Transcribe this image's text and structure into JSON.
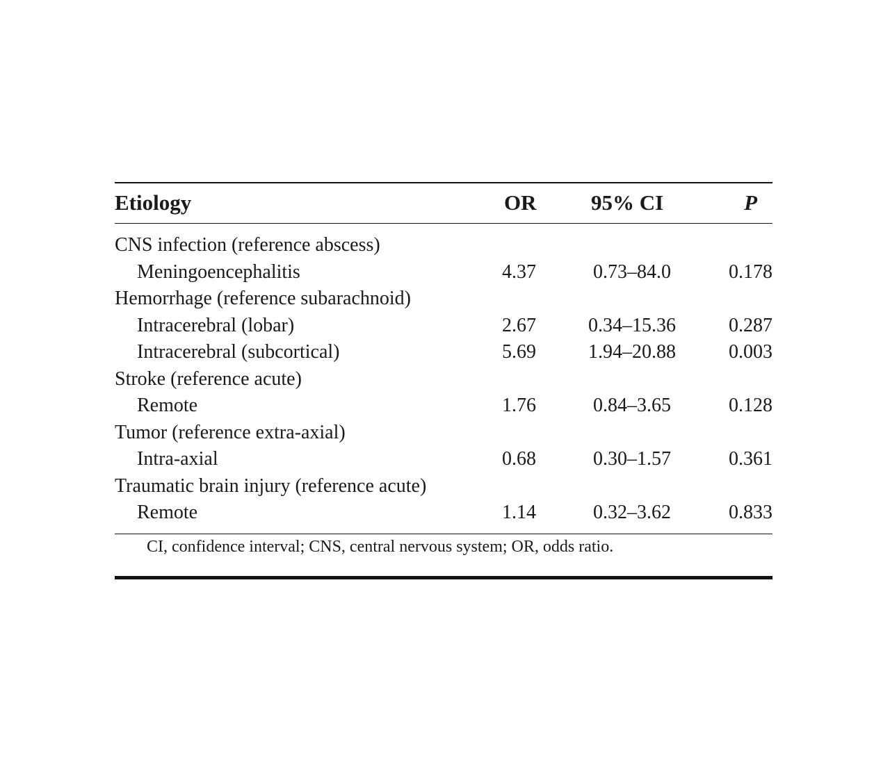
{
  "table": {
    "headers": {
      "etiology": "Etiology",
      "or": "OR",
      "ci": "95% CI",
      "p": "P"
    },
    "rows": [
      {
        "label": "CNS infection (reference abscess)",
        "or": "",
        "ci": "",
        "p": "",
        "sub": false
      },
      {
        "label": "Meningoencephalitis",
        "or": "4.37",
        "ci": "0.73–84.0",
        "p": "0.178",
        "sub": true
      },
      {
        "label": "Hemorrhage (reference subarachnoid)",
        "or": "",
        "ci": "",
        "p": "",
        "sub": false
      },
      {
        "label": "Intracerebral (lobar)",
        "or": "2.67",
        "ci": "0.34–15.36",
        "p": "0.287",
        "sub": true
      },
      {
        "label": "Intracerebral (subcortical)",
        "or": "5.69",
        "ci": "1.94–20.88",
        "p": "0.003",
        "sub": true
      },
      {
        "label": "Stroke (reference acute)",
        "or": "",
        "ci": "",
        "p": "",
        "sub": false
      },
      {
        "label": "Remote",
        "or": "1.76",
        "ci": "0.84–3.65",
        "p": "0.128",
        "sub": true
      },
      {
        "label": "Tumor (reference extra-axial)",
        "or": "",
        "ci": "",
        "p": "",
        "sub": false
      },
      {
        "label": "Intra-axial",
        "or": "0.68",
        "ci": "0.30–1.57",
        "p": "0.361",
        "sub": true
      },
      {
        "label": "Traumatic brain injury (reference acute)",
        "or": "",
        "ci": "",
        "p": "",
        "sub": false
      },
      {
        "label": "Remote",
        "or": "1.14",
        "ci": "0.32–3.62",
        "p": "0.833",
        "sub": true
      }
    ],
    "footnote": "CI, confidence interval; CNS, central nervous system; OR, odds ratio."
  }
}
